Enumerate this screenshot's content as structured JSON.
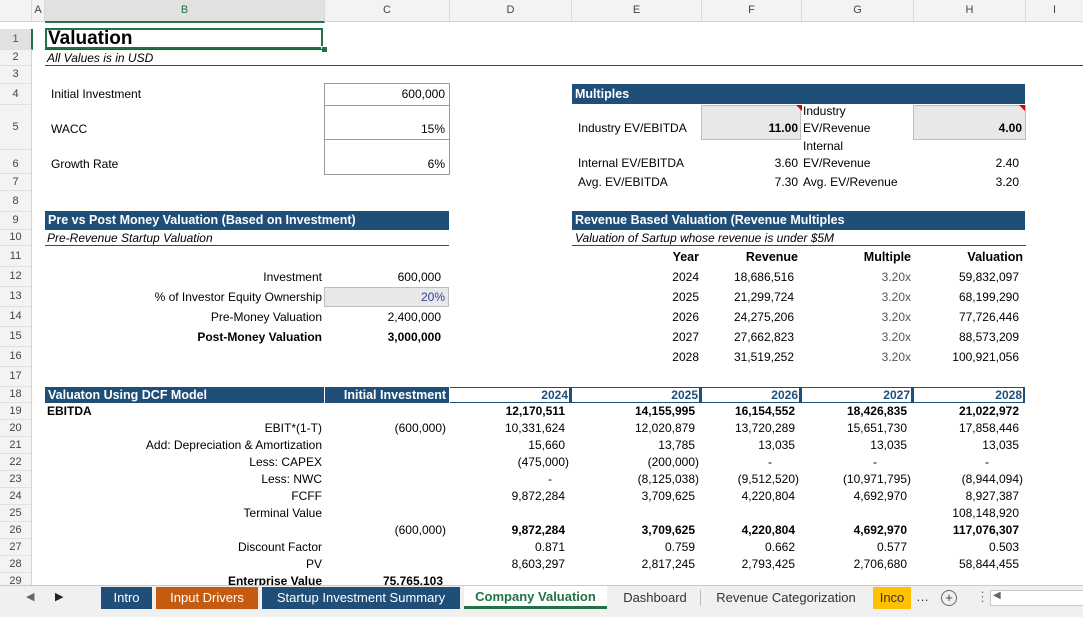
{
  "columns": [
    "A",
    "B",
    "C",
    "D",
    "E",
    "F",
    "G",
    "H",
    "I"
  ],
  "rows": [
    "1",
    "2",
    "3",
    "4",
    "5",
    "6",
    "7",
    "8",
    "9",
    "10",
    "11",
    "12",
    "13",
    "14",
    "15",
    "16",
    "17",
    "18",
    "19",
    "20",
    "21",
    "22",
    "23",
    "24",
    "25",
    "26",
    "27",
    "28",
    "29"
  ],
  "title": "Valuation",
  "subtitle": "All Values is in USD",
  "inputs": {
    "initial_investment_label": "Initial Investment",
    "initial_investment_value": "600,000",
    "wacc_label": "WACC",
    "wacc_value": "15%",
    "growth_label": "Growth Rate",
    "growth_value": "6%"
  },
  "multiples": {
    "header": "Multiples",
    "industry_ev_ebitda_label": "Industry EV/EBITDA",
    "industry_ev_ebitda_value": "11.00",
    "industry_ev_revenue_label1": "Industry",
    "industry_ev_revenue_label2": "EV/Revenue",
    "industry_ev_revenue_value": "4.00",
    "internal_ev_ebitda_label": "Internal EV/EBITDA",
    "internal_ev_ebitda_value": "3.60",
    "internal_ev_revenue_label1": "Internal",
    "internal_ev_revenue_label2": "EV/Revenue",
    "internal_ev_revenue_value": "2.40",
    "avg_ev_ebitda_label": "Avg. EV/EBITDA",
    "avg_ev_ebitda_value": "7.30",
    "avg_ev_revenue_label": "Avg. EV/Revenue",
    "avg_ev_revenue_value": "3.20"
  },
  "prepost": {
    "header": "Pre vs Post Money Valuation (Based on Investment)",
    "subheader": "Pre-Revenue Startup Valuation",
    "investment_label": "Investment",
    "investment_value": "600,000",
    "equity_label": "% of Investor Equity Ownership",
    "equity_value": "20%",
    "pre_label": "Pre-Money Valuation",
    "pre_value": "2,400,000",
    "post_label": "Post-Money Valuation",
    "post_value": "3,000,000"
  },
  "revenue_valuation": {
    "header": "Revenue Based Valuation (Revenue Multiples",
    "subheader": "Valuation of Sartup whose revenue is under $5M",
    "col_year": "Year",
    "col_revenue": "Revenue",
    "col_multiple": "Multiple",
    "col_valuation": "Valuation",
    "rows": [
      {
        "year": "2024",
        "revenue": "18,686,516",
        "multiple": "3.20x",
        "valuation": "59,832,097"
      },
      {
        "year": "2025",
        "revenue": "21,299,724",
        "multiple": "3.20x",
        "valuation": "68,199,290"
      },
      {
        "year": "2026",
        "revenue": "24,275,206",
        "multiple": "3.20x",
        "valuation": "77,726,446"
      },
      {
        "year": "2027",
        "revenue": "27,662,823",
        "multiple": "3.20x",
        "valuation": "88,573,209"
      },
      {
        "year": "2028",
        "revenue": "31,519,252",
        "multiple": "3.20x",
        "valuation": "100,921,056"
      }
    ]
  },
  "dcf": {
    "header": "Valuaton Using DCF Model",
    "col_initial": "Initial Investment",
    "years": [
      "2024",
      "2025",
      "2026",
      "2027",
      "2028"
    ],
    "ebitda_label": "EBITDA",
    "ebitda": [
      "12,170,511",
      "14,155,995",
      "16,154,552",
      "18,426,835",
      "21,022,972"
    ],
    "ebit_label": "EBIT*(1-T)",
    "ebit_initial": "(600,000)",
    "ebit": [
      "10,331,624",
      "12,020,879",
      "13,720,289",
      "15,651,730",
      "17,858,446"
    ],
    "da_label": "Add: Depreciation & Amortization",
    "da": [
      "15,660",
      "13,785",
      "13,035",
      "13,035",
      "13,035"
    ],
    "capex_label": "Less: CAPEX",
    "capex": [
      "(475,000)",
      "(200,000)",
      "-",
      "-",
      "-"
    ],
    "nwc_label": "Less: NWC",
    "nwc": [
      "-",
      "(8,125,038)",
      "(9,512,520)",
      "(10,971,795)",
      "(8,944,094)"
    ],
    "fcff_label": "FCFF",
    "fcff": [
      "9,872,284",
      "3,709,625",
      "4,220,804",
      "4,692,970",
      "8,927,387"
    ],
    "tv_label": "Terminal Value",
    "tv": [
      "",
      "",
      "",
      "",
      "108,148,920"
    ],
    "total_initial": "(600,000)",
    "total": [
      "9,872,284",
      "3,709,625",
      "4,220,804",
      "4,692,970",
      "117,076,307"
    ],
    "df_label": "Discount Factor",
    "df": [
      "0.871",
      "0.759",
      "0.662",
      "0.577",
      "0.503"
    ],
    "pv_label": "PV",
    "pv": [
      "8,603,297",
      "2,817,245",
      "2,793,425",
      "2,706,680",
      "58,844,455"
    ],
    "ev_label": "Enterprise Value",
    "ev_value": "75,765,103"
  },
  "tabs": [
    "Intro",
    "Input Drivers",
    "Startup Investment Summary",
    "Company Valuation",
    "Dashboard",
    "Revenue Categorization",
    "Inco"
  ],
  "colors": {
    "navy": "#1f4e79",
    "orange": "#c55a11",
    "tab_blue": "#1f4e79",
    "active_green": "#217346",
    "tab_yellow": "#ffc000"
  }
}
